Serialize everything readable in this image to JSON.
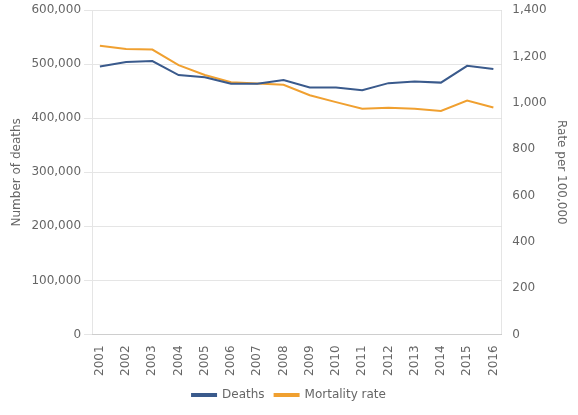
{
  "chart_data": {
    "type": "line",
    "x": [
      2001,
      2002,
      2003,
      2004,
      2005,
      2006,
      2007,
      2008,
      2009,
      2010,
      2011,
      2012,
      2013,
      2014,
      2015,
      2016
    ],
    "series": [
      {
        "name": "Deaths",
        "color": "#3a5a8c",
        "axis": "y",
        "values": [
          496000,
          504000,
          506000,
          480000,
          476000,
          464000,
          464000,
          471000,
          457000,
          457000,
          452000,
          465000,
          468000,
          466000,
          497000,
          491000
        ]
      },
      {
        "name": "Mortality rate",
        "color": "#f0a030",
        "axis": "y2",
        "values": [
          1247,
          1232,
          1230,
          1163,
          1120,
          1089,
          1083,
          1078,
          1033,
          1003,
          975,
          979,
          975,
          965,
          1010,
          980
        ]
      }
    ],
    "ylabel": "Number of deaths",
    "y2label": "Rate per 100,000",
    "xlim": [
      2000.7,
      2016.3
    ],
    "xticks": [
      2001,
      2002,
      2003,
      2004,
      2005,
      2006,
      2007,
      2008,
      2009,
      2010,
      2011,
      2012,
      2013,
      2014,
      2015,
      2016
    ],
    "ylim": [
      0,
      600000
    ],
    "yticks": [
      0,
      {
        "value": 100000,
        "label": "100,000"
      },
      {
        "value": 200000,
        "label": "200,000"
      },
      {
        "value": 300000,
        "label": "300,000"
      },
      {
        "value": 400000,
        "label": "400,000"
      },
      {
        "value": 500000,
        "label": "500,000"
      },
      {
        "value": 600000,
        "label": "600,000"
      }
    ],
    "y2lim": [
      0,
      1400
    ],
    "y2ticks": [
      0,
      200,
      400,
      600,
      800,
      {
        "value": 1000,
        "label": "1,000"
      },
      {
        "value": 1200,
        "label": "1,200"
      },
      {
        "value": 1400,
        "label": "1,400"
      }
    ],
    "grid": "y",
    "legend": "bottom"
  }
}
